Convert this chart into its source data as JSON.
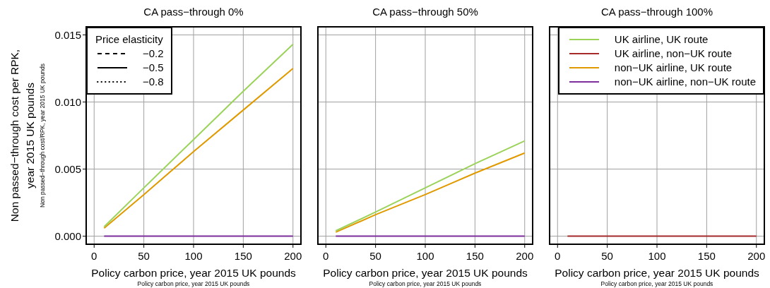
{
  "chart_data": [
    {
      "type": "line",
      "title": "CA pass−through 0%",
      "xlabel": "Policy carbon price, year 2015 UK pounds",
      "ylabel": "Non passed−through cost per RPK, year 2015 UK pounds",
      "annotations": [
        "Policy carbon price, year 2015 UK pounds",
        "Non passed−through cost/RPK, year 2015 UK pounds"
      ],
      "legend_title": "Price elasticity",
      "legend": "top left",
      "grid": true,
      "marker": "none",
      "x": [
        10,
        50,
        100,
        150,
        200
      ],
      "xlim": [
        -8,
        208
      ],
      "xticks": [
        0,
        50,
        100,
        150,
        200
      ],
      "ylim": [
        -0.0006,
        0.0156
      ],
      "yticks": [
        {
          "value": 0,
          "label": "0.000"
        },
        {
          "value": 0.005,
          "label": "0.005"
        },
        {
          "value": 0.01,
          "label": "0.010"
        },
        {
          "value": 0.015,
          "label": "0.015"
        }
      ],
      "series": [
        {
          "name": "−0.2",
          "color": "#000000",
          "line_style": "dashed",
          "values": [
            null,
            null,
            null,
            null,
            null
          ]
        },
        {
          "name": "−0.5",
          "color": "#000000",
          "line_style": "solid",
          "values": [
            null,
            null,
            null,
            null,
            null
          ]
        },
        {
          "name": "−0.8",
          "color": "#000000",
          "line_style": "dotted",
          "values": [
            null,
            null,
            null,
            null,
            null
          ]
        },
        {
          "color": "#7d2f9e",
          "line_style": "solid",
          "values": [
            0,
            0,
            0,
            0,
            0
          ]
        },
        {
          "color": "#e09a00",
          "line_style": "solid",
          "values": [
            0.0006,
            0.0031,
            0.0063,
            0.0094,
            0.0125
          ]
        },
        {
          "color": "#9bd35a",
          "line_style": "solid",
          "values": [
            0.0007,
            0.0036,
            0.0072,
            0.0108,
            0.0143
          ]
        }
      ]
    },
    {
      "type": "line",
      "title": "CA pass−through 50%",
      "xlabel": "Policy carbon price, year 2015 UK pounds",
      "annotations": [
        "Policy carbon price, year 2015 UK pounds"
      ],
      "grid": true,
      "marker": "none",
      "tick_labels": "x",
      "x": [
        10,
        50,
        100,
        150,
        200
      ],
      "xlim": [
        -8,
        208
      ],
      "xticks": [
        0,
        50,
        100,
        150,
        200
      ],
      "ylim": [
        -0.0006,
        0.0156
      ],
      "yticks": [
        0,
        0.005,
        0.01,
        0.015
      ],
      "series": [
        {
          "color": "#7d2f9e",
          "line_style": "solid",
          "values": [
            0,
            0,
            0,
            0,
            0
          ]
        },
        {
          "color": "#e09a00",
          "line_style": "solid",
          "values": [
            0.0003,
            0.0016,
            0.0031,
            0.0047,
            0.0062
          ]
        },
        {
          "color": "#9bd35a",
          "line_style": "solid",
          "values": [
            0.0004,
            0.0018,
            0.0036,
            0.0054,
            0.0071
          ]
        }
      ]
    },
    {
      "type": "line",
      "title": "CA pass−through 100%",
      "xlabel": "Policy carbon price, year 2015 UK pounds",
      "annotations": [
        "Policy carbon price, year 2015 UK pounds"
      ],
      "legend": "top right",
      "grid": true,
      "marker": "none",
      "tick_labels": "x",
      "x": [
        10,
        50,
        100,
        150,
        200
      ],
      "xlim": [
        -8,
        208
      ],
      "xticks": [
        0,
        50,
        100,
        150,
        200
      ],
      "ylim": [
        -0.0006,
        0.0156
      ],
      "yticks": [
        0,
        0.005,
        0.01,
        0.015
      ],
      "series": [
        {
          "name": "UK airline, UK route",
          "color": "#9bd35a",
          "line_style": "solid",
          "values": [
            null,
            null,
            null,
            null,
            null
          ]
        },
        {
          "name": "UK airline, non−UK route",
          "color": "#a52a2a",
          "line_style": "solid",
          "values": [
            0,
            0,
            0,
            0,
            0
          ]
        },
        {
          "name": "non−UK airline, UK route",
          "color": "#e09a00",
          "line_style": "solid",
          "values": [
            null,
            null,
            null,
            null,
            null
          ]
        },
        {
          "name": "non−UK airline, non−UK route",
          "color": "#7d2f9e",
          "line_style": "solid",
          "values": [
            null,
            null,
            null,
            null,
            null
          ]
        }
      ]
    }
  ]
}
